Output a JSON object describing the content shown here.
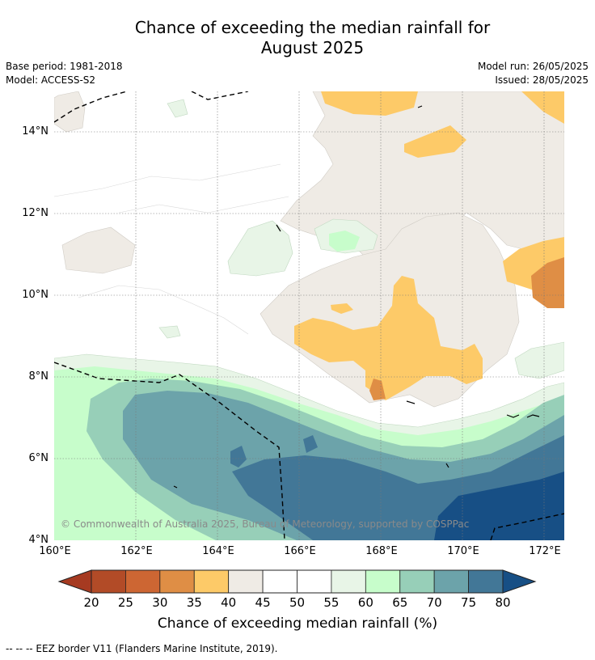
{
  "title_line1": "Chance of exceeding the median rainfall for",
  "title_line2": "August 2025",
  "base_period": "Base period: 1981-2018",
  "model": "Model: ACCESS-S2",
  "model_run": "Model run: 26/05/2025",
  "issued": "Issued: 28/05/2025",
  "copyright": "© Commonwealth of Australia 2025, Bureau of Meteorology, supported by COSPPac",
  "lat_labels": [
    "14°N",
    "12°N",
    "10°N",
    "8°N",
    "6°N",
    "4°N"
  ],
  "lon_labels": [
    "160°E",
    "162°E",
    "164°E",
    "166°E",
    "168°E",
    "170°E",
    "172°E"
  ],
  "colorbar": {
    "ticks": [
      "20",
      "25",
      "30",
      "35",
      "40",
      "45",
      "50",
      "55",
      "60",
      "65",
      "70",
      "75",
      "80"
    ],
    "title": "Chance of exceeding median rainfall (%)",
    "colors": [
      "#a63a21",
      "#b24b27",
      "#cd6633",
      "#df8e45",
      "#fdca68",
      "#efebe5",
      "#ffffff",
      "#ffffff",
      "#e8f5e7",
      "#c7fdcb",
      "#97cfb8",
      "#6ca3aa",
      "#427797",
      "#174f85"
    ]
  },
  "footnote": "--  --  -- EEZ border V11 (Flanders Marine Institute, 2019)."
}
